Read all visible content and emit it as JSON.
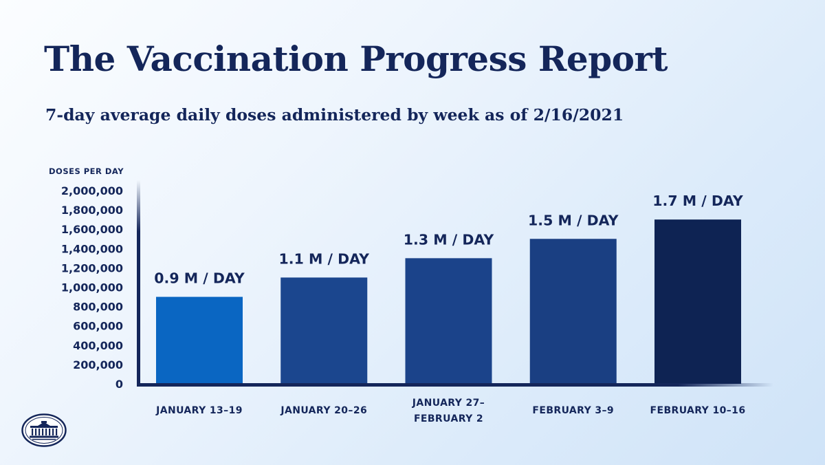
{
  "header": {
    "title": "The Vaccination Progress Report",
    "subtitle": "7-day average daily doses administered by week as of 2/16/2021"
  },
  "chart_data": {
    "type": "bar",
    "ylabel": "DOSES PER DAY",
    "ylim": [
      0,
      2000000
    ],
    "y_ticks": [
      {
        "value": 0,
        "label": "0"
      },
      {
        "value": 200000,
        "label": "200,000"
      },
      {
        "value": 400000,
        "label": "400,000"
      },
      {
        "value": 600000,
        "label": "600,000"
      },
      {
        "value": 800000,
        "label": "800,000"
      },
      {
        "value": 1000000,
        "label": "1,000,000"
      },
      {
        "value": 1200000,
        "label": "1,200,000"
      },
      {
        "value": 1400000,
        "label": "1,400,000"
      },
      {
        "value": 1600000,
        "label": "1,600,000"
      },
      {
        "value": 1800000,
        "label": "1,800,000"
      },
      {
        "value": 2000000,
        "label": "2,000,000"
      }
    ],
    "categories": [
      [
        "JANUARY 13–19"
      ],
      [
        "JANUARY 20–26"
      ],
      [
        "JANUARY 27–",
        "FEBRUARY 2"
      ],
      [
        "FEBRUARY 3–9"
      ],
      [
        "FEBRUARY 10–16"
      ]
    ],
    "values": [
      900000,
      1100000,
      1300000,
      1500000,
      1700000
    ],
    "data_labels": [
      "0.9 M / DAY",
      "1.1 M / DAY",
      "1.3 M / DAY",
      "1.5 M / DAY",
      "1.7 M / DAY"
    ],
    "bar_colors": [
      "#0a66c2",
      "#1b468e",
      "#1b438a",
      "#1a3f82",
      "#0e2353"
    ],
    "grid": false
  },
  "colors": {
    "text": "#14265a",
    "axis": "#14265a"
  },
  "logo": {
    "icon": "white-house-seal-icon"
  }
}
